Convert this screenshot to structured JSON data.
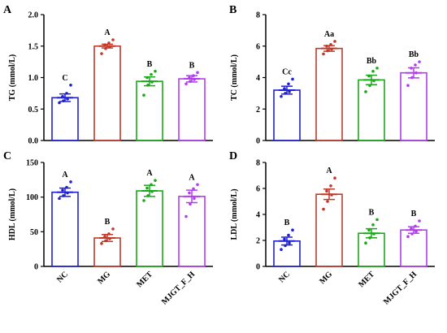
{
  "categories": [
    "NC",
    "MG",
    "MET",
    "MJGT_F_H"
  ],
  "colors": [
    "#1f1fd6",
    "#c0392b",
    "#1aa81a",
    "#b43cf0"
  ],
  "chart_data": [
    {
      "type": "bar",
      "panel": "A",
      "ylabel": "TG (mmol/L)",
      "ylim": [
        0,
        2.0
      ],
      "yticks": [
        "0.0",
        "0.5",
        "1.0",
        "1.5",
        "2.0"
      ],
      "ytick_values": [
        0,
        0.5,
        1.0,
        1.5,
        2.0
      ],
      "categories": [
        "NC",
        "MG",
        "MET",
        "MJGT_F_H"
      ],
      "values": [
        0.68,
        1.5,
        0.94,
        0.98
      ],
      "errors": [
        0.06,
        0.03,
        0.07,
        0.05
      ],
      "points": [
        [
          0.6,
          0.63,
          0.66,
          0.7,
          0.75,
          0.88
        ],
        [
          1.38,
          1.46,
          1.49,
          1.52,
          1.55,
          1.6
        ],
        [
          0.72,
          0.88,
          0.93,
          1.0,
          1.05,
          1.1
        ],
        [
          0.9,
          0.94,
          0.97,
          1.0,
          1.03,
          1.08
        ]
      ],
      "labels": [
        "C",
        "A",
        "B",
        "B"
      ]
    },
    {
      "type": "bar",
      "panel": "B",
      "ylabel": "TC (mmol/L)",
      "ylim": [
        0,
        8
      ],
      "yticks": [
        "0",
        "2",
        "4",
        "6",
        "8"
      ],
      "ytick_values": [
        0,
        2,
        4,
        6,
        8
      ],
      "categories": [
        "NC",
        "MG",
        "MET",
        "MJGT_F_H"
      ],
      "values": [
        3.2,
        5.85,
        3.85,
        4.3
      ],
      "errors": [
        0.25,
        0.18,
        0.3,
        0.32
      ],
      "points": [
        [
          2.8,
          3.0,
          3.1,
          3.3,
          3.6,
          3.9
        ],
        [
          5.5,
          5.7,
          5.8,
          6.0,
          6.1,
          6.3
        ],
        [
          3.1,
          3.5,
          3.8,
          4.1,
          4.4,
          4.6
        ],
        [
          3.5,
          4.0,
          4.3,
          4.6,
          4.8,
          5.0
        ]
      ],
      "labels": [
        "Cc",
        "Aa",
        "Bb",
        "Bb"
      ]
    },
    {
      "type": "bar",
      "panel": "C",
      "ylabel": "HDL (mmol/L)",
      "ylim": [
        0,
        150
      ],
      "yticks": [
        "0",
        "50",
        "100",
        "150"
      ],
      "ytick_values": [
        0,
        50,
        100,
        150
      ],
      "categories": [
        "NC",
        "MG",
        "MET",
        "MJGT_F_H"
      ],
      "values": [
        107,
        41,
        109,
        101
      ],
      "errors": [
        6,
        5,
        8,
        9
      ],
      "points": [
        [
          98,
          102,
          106,
          110,
          114,
          122
        ],
        [
          33,
          37,
          40,
          43,
          47,
          54
        ],
        [
          95,
          102,
          108,
          113,
          118,
          124
        ],
        [
          72,
          90,
          98,
          106,
          112,
          118
        ]
      ],
      "labels": [
        "A",
        "B",
        "A",
        "A"
      ]
    },
    {
      "type": "bar",
      "panel": "D",
      "ylabel": "LDL (mmol/L)",
      "ylim": [
        0,
        8
      ],
      "yticks": [
        "0",
        "2",
        "4",
        "6",
        "8"
      ],
      "ytick_values": [
        0,
        2,
        4,
        6,
        8
      ],
      "categories": [
        "NC",
        "MG",
        "MET",
        "MJGT_F_H"
      ],
      "values": [
        1.95,
        5.55,
        2.55,
        2.8
      ],
      "errors": [
        0.3,
        0.4,
        0.35,
        0.25
      ],
      "points": [
        [
          1.3,
          1.6,
          1.8,
          2.1,
          2.4,
          2.8
        ],
        [
          4.4,
          5.0,
          5.5,
          5.8,
          6.2,
          6.8
        ],
        [
          1.8,
          2.2,
          2.5,
          2.8,
          3.2,
          3.6
        ],
        [
          2.3,
          2.5,
          2.7,
          2.9,
          3.1,
          3.5
        ]
      ],
      "labels": [
        "B",
        "A",
        "B",
        "B"
      ]
    }
  ]
}
